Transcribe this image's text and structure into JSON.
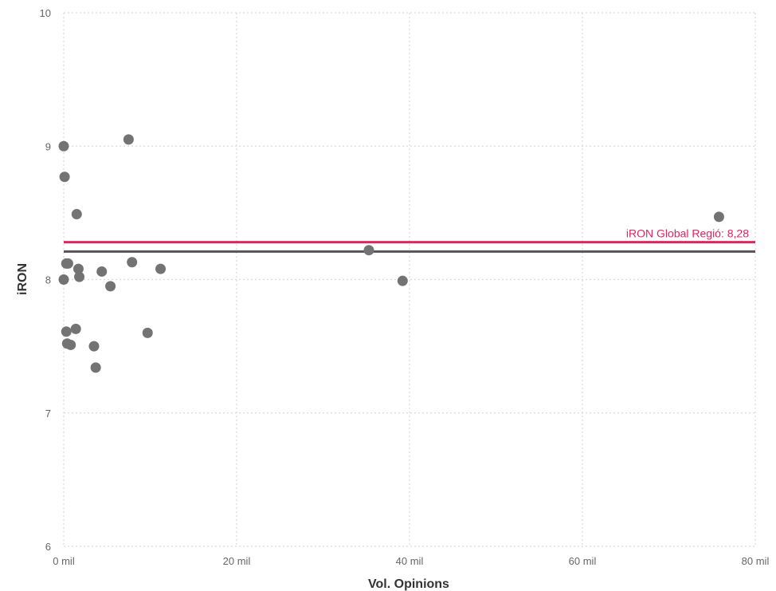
{
  "chart_data": {
    "type": "scatter",
    "xlabel": "Vol. Opinions",
    "ylabel": "iRON",
    "xlim": [
      0,
      80000
    ],
    "ylim": [
      6,
      10
    ],
    "x_ticks": [
      {
        "value": 0,
        "label": "0 mil"
      },
      {
        "value": 20000,
        "label": "20 mil"
      },
      {
        "value": 40000,
        "label": "40 mil"
      },
      {
        "value": 60000,
        "label": "60 mil"
      },
      {
        "value": 80000,
        "label": "80 mil"
      }
    ],
    "y_ticks": [
      {
        "value": 6,
        "label": "6"
      },
      {
        "value": 7,
        "label": "7"
      },
      {
        "value": 8,
        "label": "8"
      },
      {
        "value": 9,
        "label": "9"
      },
      {
        "value": 10,
        "label": "10"
      }
    ],
    "grid": true,
    "points": [
      {
        "x": 0,
        "y": 9.0
      },
      {
        "x": 100,
        "y": 8.77
      },
      {
        "x": 1500,
        "y": 8.49
      },
      {
        "x": 7500,
        "y": 9.05
      },
      {
        "x": 75800,
        "y": 8.47
      },
      {
        "x": 35300,
        "y": 8.22
      },
      {
        "x": 39200,
        "y": 7.99
      },
      {
        "x": 300,
        "y": 8.12
      },
      {
        "x": 500,
        "y": 8.12
      },
      {
        "x": 1700,
        "y": 8.08
      },
      {
        "x": 1800,
        "y": 8.02
      },
      {
        "x": 0,
        "y": 8.0
      },
      {
        "x": 4400,
        "y": 8.06
      },
      {
        "x": 5400,
        "y": 7.95
      },
      {
        "x": 7900,
        "y": 8.13
      },
      {
        "x": 11200,
        "y": 8.08
      },
      {
        "x": 300,
        "y": 7.61
      },
      {
        "x": 1400,
        "y": 7.63
      },
      {
        "x": 9700,
        "y": 7.6
      },
      {
        "x": 400,
        "y": 7.52
      },
      {
        "x": 800,
        "y": 7.51
      },
      {
        "x": 3500,
        "y": 7.5
      },
      {
        "x": 3700,
        "y": 7.34
      }
    ],
    "reference_lines": [
      {
        "y": 8.28,
        "label": "iRON Global Regió: 8,28",
        "color": "#e0245e"
      },
      {
        "y": 8.21,
        "label": "",
        "color": "#555555"
      }
    ],
    "colors": {
      "points": "#737373",
      "grid": "#d9d9d9",
      "tick_text": "#666666",
      "axis_title": "#333333"
    }
  }
}
